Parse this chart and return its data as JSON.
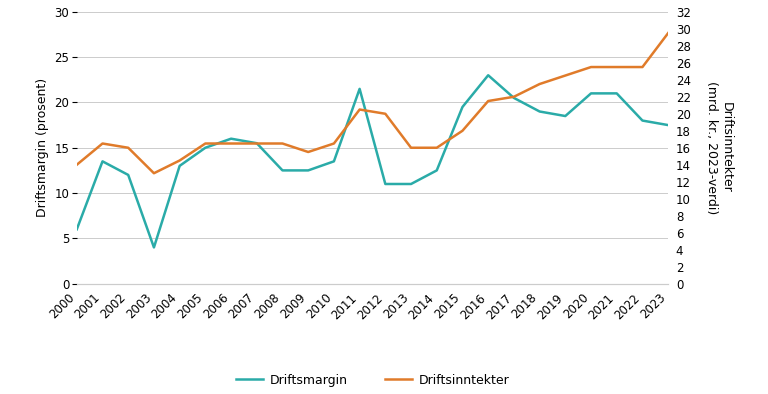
{
  "years": [
    2000,
    2001,
    2002,
    2003,
    2004,
    2005,
    2006,
    2007,
    2008,
    2009,
    2010,
    2011,
    2012,
    2013,
    2014,
    2015,
    2016,
    2017,
    2018,
    2019,
    2020,
    2021,
    2022,
    2023
  ],
  "driftsmargin": [
    6.0,
    13.5,
    12.0,
    4.0,
    13.0,
    15.0,
    16.0,
    15.5,
    12.5,
    12.5,
    13.5,
    21.5,
    11.0,
    11.0,
    12.5,
    19.5,
    23.0,
    20.5,
    19.0,
    18.5,
    21.0,
    21.0,
    18.0,
    17.5
  ],
  "driftsinntekter": [
    14.0,
    16.5,
    16.0,
    13.0,
    14.5,
    16.5,
    16.5,
    16.5,
    16.5,
    15.5,
    16.5,
    20.5,
    20.0,
    16.0,
    16.0,
    18.0,
    21.5,
    22.0,
    23.5,
    24.5,
    25.5,
    25.5,
    25.5,
    29.5
  ],
  "color_margin": "#2AABA8",
  "color_income": "#E07B2A",
  "ylabel_left": "Driftsmargin (prosent)",
  "ylabel_right": "Driftsinntekter\n(mrd. kr., 2023-verdi)",
  "ylim_left": [
    0,
    30
  ],
  "ylim_right": [
    0,
    32
  ],
  "yticks_left": [
    0,
    5,
    10,
    15,
    20,
    25,
    30
  ],
  "yticks_right": [
    0,
    2,
    4,
    6,
    8,
    10,
    12,
    14,
    16,
    18,
    20,
    22,
    24,
    26,
    28,
    30,
    32
  ],
  "legend_margin": "Driftsmargin",
  "legend_income": "Driftsinntekter",
  "background_color": "#ffffff",
  "grid_color": "#cccccc",
  "linewidth": 1.8,
  "label_fontsize": 9,
  "tick_fontsize": 8.5
}
